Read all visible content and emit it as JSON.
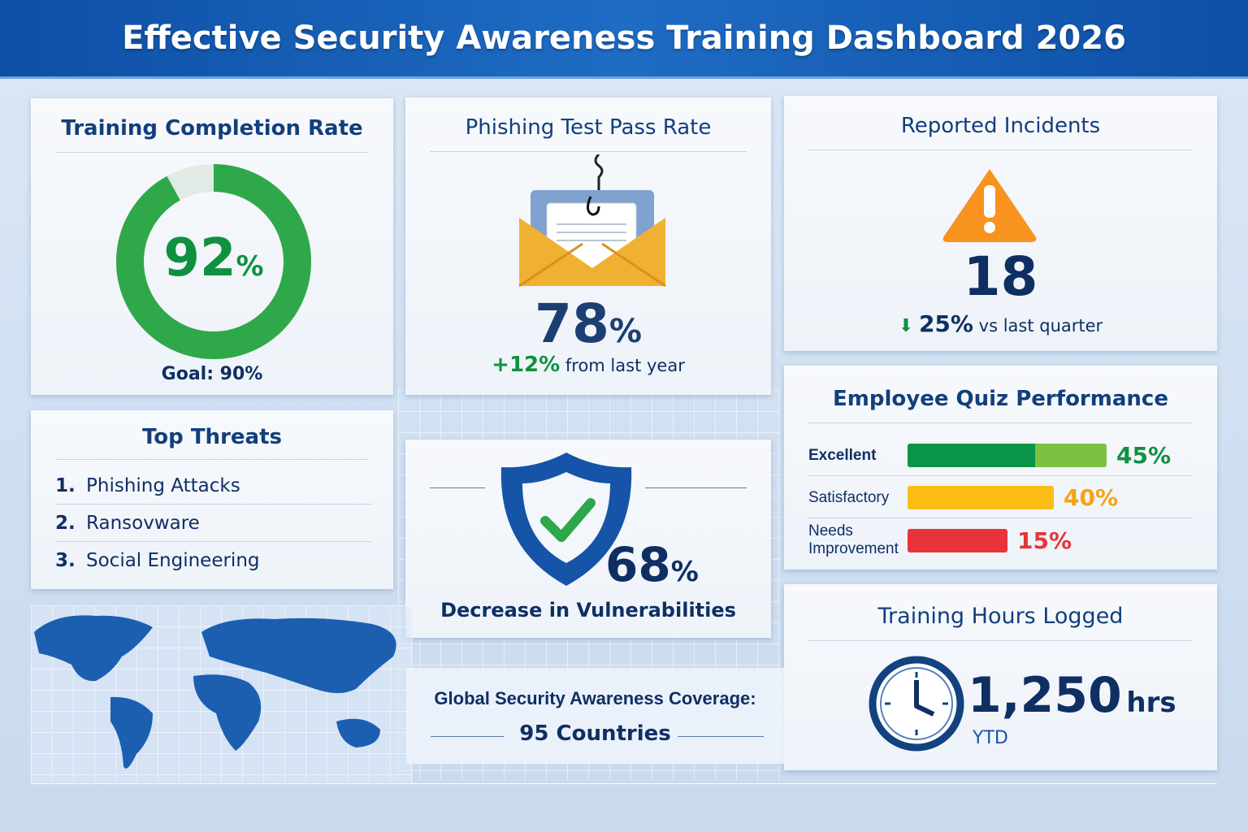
{
  "header": {
    "title": "Effective Security Awareness Training Dashboard 2026"
  },
  "completion": {
    "title": "Training Completion Rate",
    "value": "92",
    "unit": "%",
    "percent": 92,
    "goal": "Goal: 90%"
  },
  "phishing": {
    "title": "Phishing Test Pass Rate",
    "value": "78",
    "unit": "%",
    "change": "+12%",
    "change_text": "from last year",
    "icon": "phishing-email-icon"
  },
  "incidents": {
    "title": "Reported Incidents",
    "value": "18",
    "change": "25%",
    "change_text": "vs last quarter",
    "icon": "warning-icon"
  },
  "threats": {
    "title": "Top Threats",
    "items": [
      {
        "n": "1.",
        "label": "Phishing Attacks"
      },
      {
        "n": "2.",
        "label": "Ransovware"
      },
      {
        "n": "3.",
        "label": "Social Engineering"
      }
    ]
  },
  "vulnerabilities": {
    "value": "68",
    "unit": "%",
    "label": "Decrease in Vulnerabilities",
    "icon": "shield-check-icon"
  },
  "quiz": {
    "title": "Employee Quiz Performance",
    "rows": [
      {
        "label": "Excellent",
        "pct": "45%",
        "value": 45,
        "color": "#0a9447"
      },
      {
        "label": "Satisfactory",
        "pct": "40%",
        "value": 40,
        "color": "#fbbc14"
      },
      {
        "label": "Needs Improvement",
        "pct": "15%",
        "value": 15,
        "color": "#e8333a"
      }
    ]
  },
  "hours": {
    "title": "Training Hours Logged",
    "value": "1,250",
    "unit": "hrs",
    "period": "YTD",
    "icon": "clock-icon"
  },
  "coverage": {
    "label": "Global Security Awareness Coverage:",
    "value": "95 Countries",
    "icon": "world-map-icon"
  },
  "colors": {
    "brand": "#0d4fa5",
    "green": "#0a9447",
    "orange": "#f7931e",
    "red": "#e8333a",
    "yellow": "#fbbc14"
  }
}
